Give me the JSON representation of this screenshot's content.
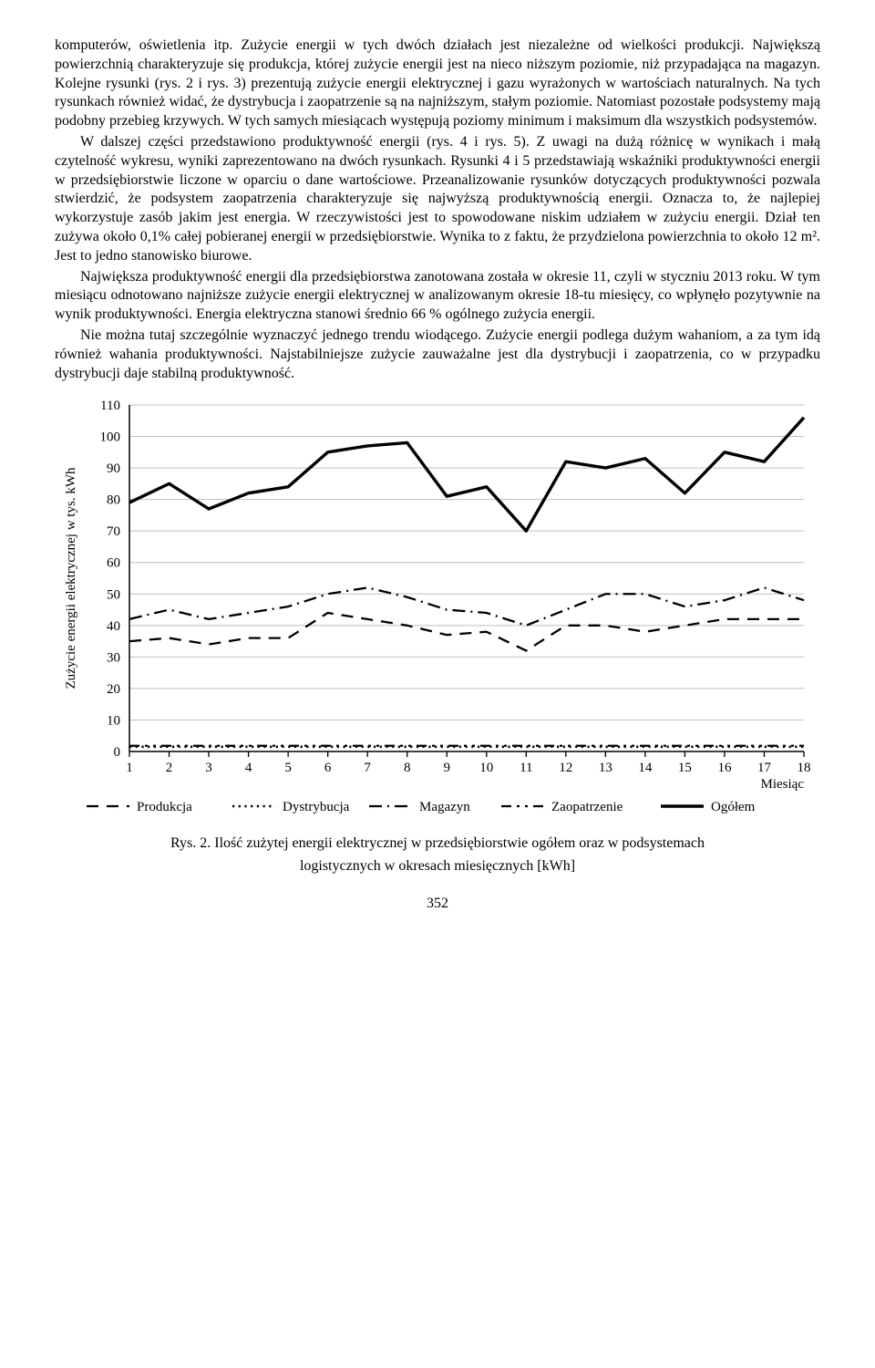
{
  "paragraphs": {
    "p1": "komputerów, oświetlenia itp. Zużycie energii w tych dwóch działach jest niezależne od wielkości produkcji. Największą powierzchnią charakteryzuje się produkcja, której zużycie energii jest na nieco niższym poziomie, niż przypadająca na magazyn. Kolejne rysunki (rys. 2 i rys. 3) prezentują zużycie energii elektrycznej i gazu wyrażonych w wartościach naturalnych. Na tych rysunkach również widać, że dystrybucja i zaopatrzenie są na najniższym, stałym poziomie. Natomiast pozostałe podsystemy mają podobny przebieg krzywych. W tych samych miesiącach występują poziomy minimum i maksimum dla wszystkich podsystemów.",
    "p2": "W dalszej części przedstawiono produktywność energii (rys. 4 i rys. 5). Z uwagi na dużą różnicę w wynikach i małą czytelność wykresu, wyniki zaprezentowano na dwóch rysunkach. Rysunki 4 i 5 przedstawiają wskaźniki produktywności energii w przedsiębiorstwie liczone w oparciu o dane wartościowe. Przeanalizowanie rysunków dotyczących produktywności pozwala stwierdzić, że podsystem zaopatrzenia charakteryzuje się najwyższą produktywnością energii. Oznacza to, że najlepiej wykorzystuje zasób jakim jest energia. W rzeczywistości jest to spowodowane niskim udziałem w zużyciu energii. Dział ten zużywa około 0,1% całej pobieranej energii w przedsiębiorstwie. Wynika to z faktu, że przydzielona powierzchnia to około 12 m². Jest to jedno stanowisko biurowe.",
    "p3": "Największa produktywność energii dla przedsiębiorstwa zanotowana została w okresie 11, czyli w styczniu 2013 roku. W tym miesiącu odnotowano najniższe zużycie energii elektrycznej w analizowanym okresie 18-tu miesięcy, co wpłynęło pozytywnie na wynik produktywności. Energia elektryczna stanowi średnio 66 % ogólnego zużycia energii.",
    "p4": "Nie można tutaj szczególnie wyznaczyć jednego trendu wiodącego. Zużycie energii podlega dużym wahaniom, a za tym idą również wahania produktywności. Najstabilniejsze zużycie zauważalne jest dla dystrybucji i zaopatrzenia, co w przypadku dystrybucji daje stabilną produktywność."
  },
  "chart": {
    "type": "line",
    "ylabel": "Zużycie energii elektrycznej w tys. kWh",
    "xlabel": "Miesiąc",
    "yticks": [
      0,
      10,
      20,
      30,
      40,
      50,
      60,
      70,
      80,
      90,
      100,
      110
    ],
    "xticks": [
      1,
      2,
      3,
      4,
      5,
      6,
      7,
      8,
      9,
      10,
      11,
      12,
      13,
      14,
      15,
      16,
      17,
      18
    ],
    "ylim": [
      0,
      110
    ],
    "xlim": [
      1,
      18
    ],
    "background_color": "#ffffff",
    "grid_color": "#bfbfbf",
    "axis_color": "#000000",
    "label_fontsize": 15,
    "tick_fontsize": 15,
    "line_width": 2.5,
    "legend": {
      "items": [
        {
          "label": "Produkcja",
          "dash": "13,9",
          "weight": 2.3
        },
        {
          "label": "Dystrybucja",
          "dash": "2.2,4.5",
          "weight": 2.6
        },
        {
          "label": "Magazyn",
          "dash": "14,6,2,6",
          "weight": 2.3
        },
        {
          "label": "Zaopatrzenie",
          "dash": "11,6,3,6,3,6",
          "weight": 2.3
        },
        {
          "label": "Ogółem",
          "dash": "",
          "weight": 3.4
        }
      ]
    },
    "series": {
      "Produkcja": [
        35,
        36,
        34,
        36,
        36,
        44,
        42,
        40,
        37,
        38,
        32,
        40,
        40,
        38,
        40,
        42,
        42,
        42
      ],
      "Dystrybucja": [
        1.5,
        1.5,
        1.5,
        1.5,
        1.5,
        1.5,
        1.5,
        1.5,
        1.5,
        1.5,
        1.5,
        1.5,
        1.5,
        1.5,
        1.5,
        1.5,
        1.5,
        1.5
      ],
      "Magazyn": [
        42,
        45,
        42,
        44,
        46,
        50,
        52,
        49,
        45,
        44,
        40,
        45,
        50,
        50,
        46,
        48,
        52,
        48
      ],
      "Zaopatrzenie": [
        1.8,
        1.8,
        1.8,
        1.8,
        1.8,
        1.8,
        1.8,
        1.8,
        1.8,
        1.8,
        1.8,
        1.8,
        1.8,
        1.8,
        1.8,
        1.8,
        1.8,
        1.8
      ],
      "Ogółem": [
        79,
        85,
        77,
        82,
        84,
        95,
        97,
        98,
        81,
        84,
        70,
        92,
        90,
        93,
        82,
        95,
        92,
        106
      ]
    }
  },
  "figcaption_line1": "Rys. 2. Ilość zużytej energii elektrycznej w przedsiębiorstwie ogółem oraz w podsystemach",
  "figcaption_line2": "logistycznych w okresach miesięcznych [kWh]",
  "page_number": "352"
}
